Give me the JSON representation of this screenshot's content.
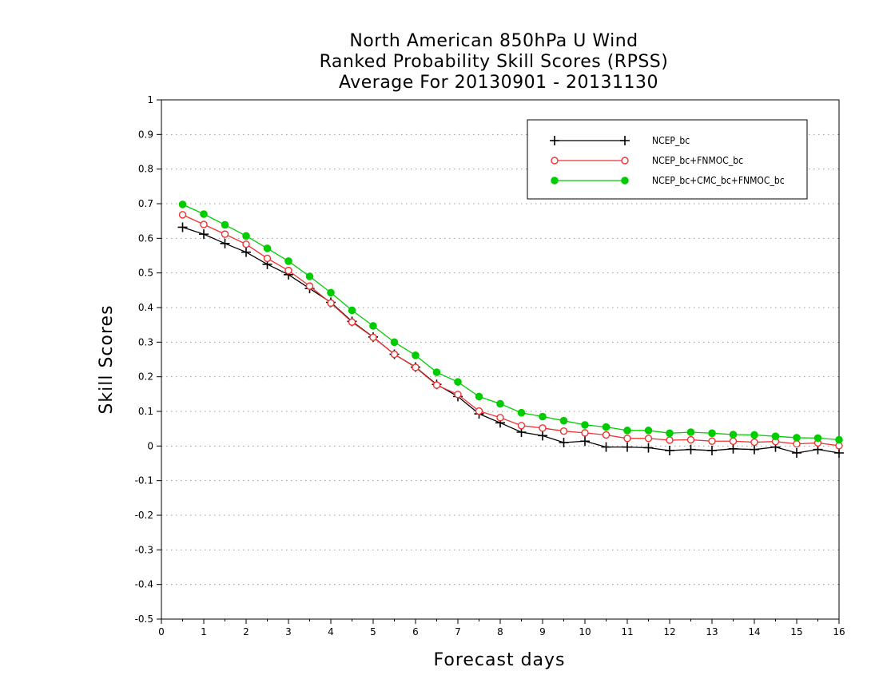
{
  "chart_data": {
    "type": "line",
    "title_lines": [
      "North American 850hPa U Wind",
      "Ranked Probability Skill Scores (RPSS)",
      "Average For 20130901 - 20131130"
    ],
    "xlabel": "Forecast days",
    "ylabel": "Skill Scores",
    "xlim": [
      0,
      16
    ],
    "ylim": [
      -0.5,
      1
    ],
    "x_ticks": [
      "0",
      "1",
      "2",
      "3",
      "4",
      "5",
      "6",
      "7",
      "8",
      "9",
      "10",
      "11",
      "12",
      "13",
      "14",
      "15",
      "16"
    ],
    "y_ticks": [
      "1",
      "0.9",
      "0.8",
      "0.7",
      "0.6",
      "0.5",
      "0.4",
      "0.3",
      "0.2",
      "0.1",
      "0",
      "-0.1",
      "-0.2",
      "-0.3",
      "-0.4",
      "-0.5"
    ],
    "grid": "horizontal dotted",
    "legend_position": "top-right",
    "x": [
      0.5,
      1,
      1.5,
      2,
      2.5,
      3,
      3.5,
      4,
      4.5,
      5,
      5.5,
      6,
      6.5,
      7,
      7.5,
      8,
      8.5,
      9,
      9.5,
      10,
      10.5,
      11,
      11.5,
      12,
      12.5,
      13,
      13.5,
      14,
      14.5,
      15,
      15.5,
      16
    ],
    "series": [
      {
        "name": "NCEP_bc",
        "color": "#000000",
        "marker": "plus",
        "values": [
          0.632,
          0.612,
          0.585,
          0.56,
          0.525,
          0.495,
          0.455,
          0.415,
          0.36,
          0.315,
          0.265,
          0.228,
          0.178,
          0.143,
          0.093,
          0.067,
          0.04,
          0.03,
          0.01,
          0.014,
          -0.003,
          -0.003,
          -0.005,
          -0.013,
          -0.01,
          -0.013,
          -0.008,
          -0.01,
          -0.003,
          -0.02,
          -0.01,
          -0.02
        ]
      },
      {
        "name": "NCEP_bc+FNMOC_bc",
        "color": "#ee3333",
        "marker": "open-circle",
        "values": [
          0.668,
          0.64,
          0.612,
          0.583,
          0.542,
          0.507,
          0.462,
          0.413,
          0.358,
          0.314,
          0.265,
          0.227,
          0.176,
          0.149,
          0.101,
          0.082,
          0.059,
          0.052,
          0.043,
          0.038,
          0.032,
          0.022,
          0.022,
          0.017,
          0.018,
          0.014,
          0.014,
          0.011,
          0.013,
          0.006,
          0.009,
          0.001
        ]
      },
      {
        "name": "NCEP_bc+CMC_bc+FNMOC_bc",
        "color": "#00cc00",
        "marker": "filled-circle",
        "values": [
          0.698,
          0.67,
          0.639,
          0.607,
          0.571,
          0.534,
          0.49,
          0.443,
          0.392,
          0.347,
          0.3,
          0.262,
          0.213,
          0.185,
          0.143,
          0.122,
          0.096,
          0.085,
          0.073,
          0.061,
          0.055,
          0.045,
          0.045,
          0.037,
          0.04,
          0.037,
          0.033,
          0.032,
          0.028,
          0.024,
          0.023,
          0.018
        ]
      }
    ]
  }
}
